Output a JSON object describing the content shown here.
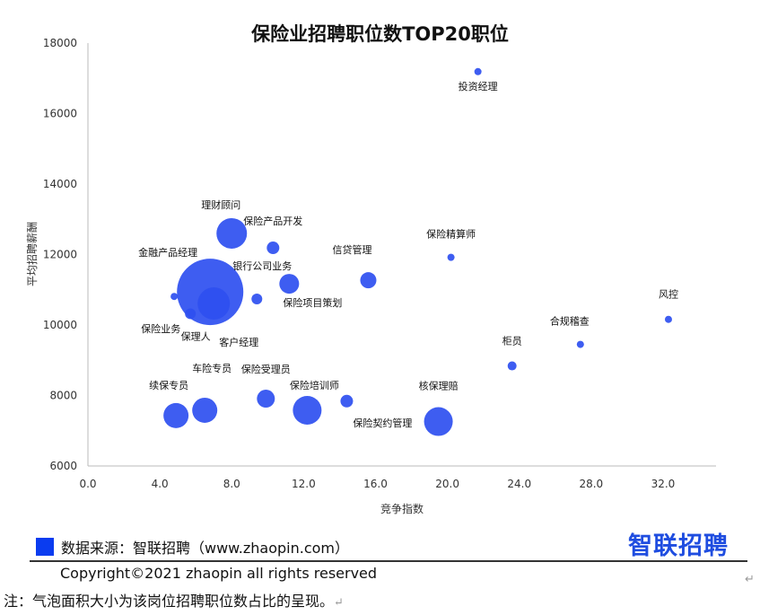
{
  "chart_data": {
    "type": "scatter",
    "subtype": "bubble",
    "title": "保险业招聘职位数TOP20职位",
    "xlabel": "竞争指数",
    "ylabel": "平均招聘薪酬",
    "xlim": [
      0,
      35
    ],
    "ylim": [
      6000,
      18000
    ],
    "xticks": [
      "0.0",
      "4.0",
      "8.0",
      "12.0",
      "16.0",
      "20.0",
      "24.0",
      "28.0",
      "32.0"
    ],
    "yticks": [
      "6000",
      "8000",
      "10000",
      "12000",
      "14000",
      "16000",
      "18000"
    ],
    "color": "#2e4ff0",
    "grid": false,
    "points": [
      {
        "label": "投资经理",
        "x": 21.7,
        "y": 17190,
        "size": 16
      },
      {
        "label": "保险精算师",
        "x": 20.2,
        "y": 11920,
        "size": 16
      },
      {
        "label": "风控",
        "x": 32.3,
        "y": 10160,
        "size": 16
      },
      {
        "label": "合规稽查",
        "x": 27.4,
        "y": 9450,
        "size": 16
      },
      {
        "label": "柜员",
        "x": 23.6,
        "y": 8840,
        "size": 25
      },
      {
        "label": "核保理赔",
        "x": 19.5,
        "y": 7260,
        "size": 256
      },
      {
        "label": "保险契约管理",
        "x": 14.4,
        "y": 7840,
        "size": 49
      },
      {
        "label": "保险培训师",
        "x": 12.2,
        "y": 7580,
        "size": 256
      },
      {
        "label": "保险受理员",
        "x": 9.9,
        "y": 7910,
        "size": 100
      },
      {
        "label": "车险专员",
        "x": 6.5,
        "y": 7580,
        "size": 196
      },
      {
        "label": "续保专员",
        "x": 4.9,
        "y": 7430,
        "size": 196
      },
      {
        "label": "保险项目策划",
        "x": 11.2,
        "y": 11170,
        "size": 121
      },
      {
        "label": "信贷管理",
        "x": 15.6,
        "y": 11270,
        "size": 81
      },
      {
        "label": "银行公司业务",
        "x": 9.4,
        "y": 10740,
        "size": 36
      },
      {
        "label": "保险产品开发",
        "x": 10.3,
        "y": 12190,
        "size": 49
      },
      {
        "label": "理财顾问",
        "x": 8.0,
        "y": 12600,
        "size": 289
      },
      {
        "label": "金融产品经理",
        "x": 4.8,
        "y": 10810,
        "size": 16
      },
      {
        "label": "保险业务",
        "x": 6.8,
        "y": 10940,
        "size": 1369
      },
      {
        "label": "保理人",
        "x": 5.7,
        "y": 10320,
        "size": 36
      },
      {
        "label": "客户经理",
        "x": 7.0,
        "y": 10610,
        "size": 324
      }
    ]
  },
  "footer": {
    "source": "数据来源：智联招聘（www.zhaopin.com）",
    "logo": "智联招聘",
    "copyright": "Copyright©2021 zhaopin all rights reserved",
    "note": "注：气泡面积大小为该岗位招聘职位数占比的呈现。"
  }
}
